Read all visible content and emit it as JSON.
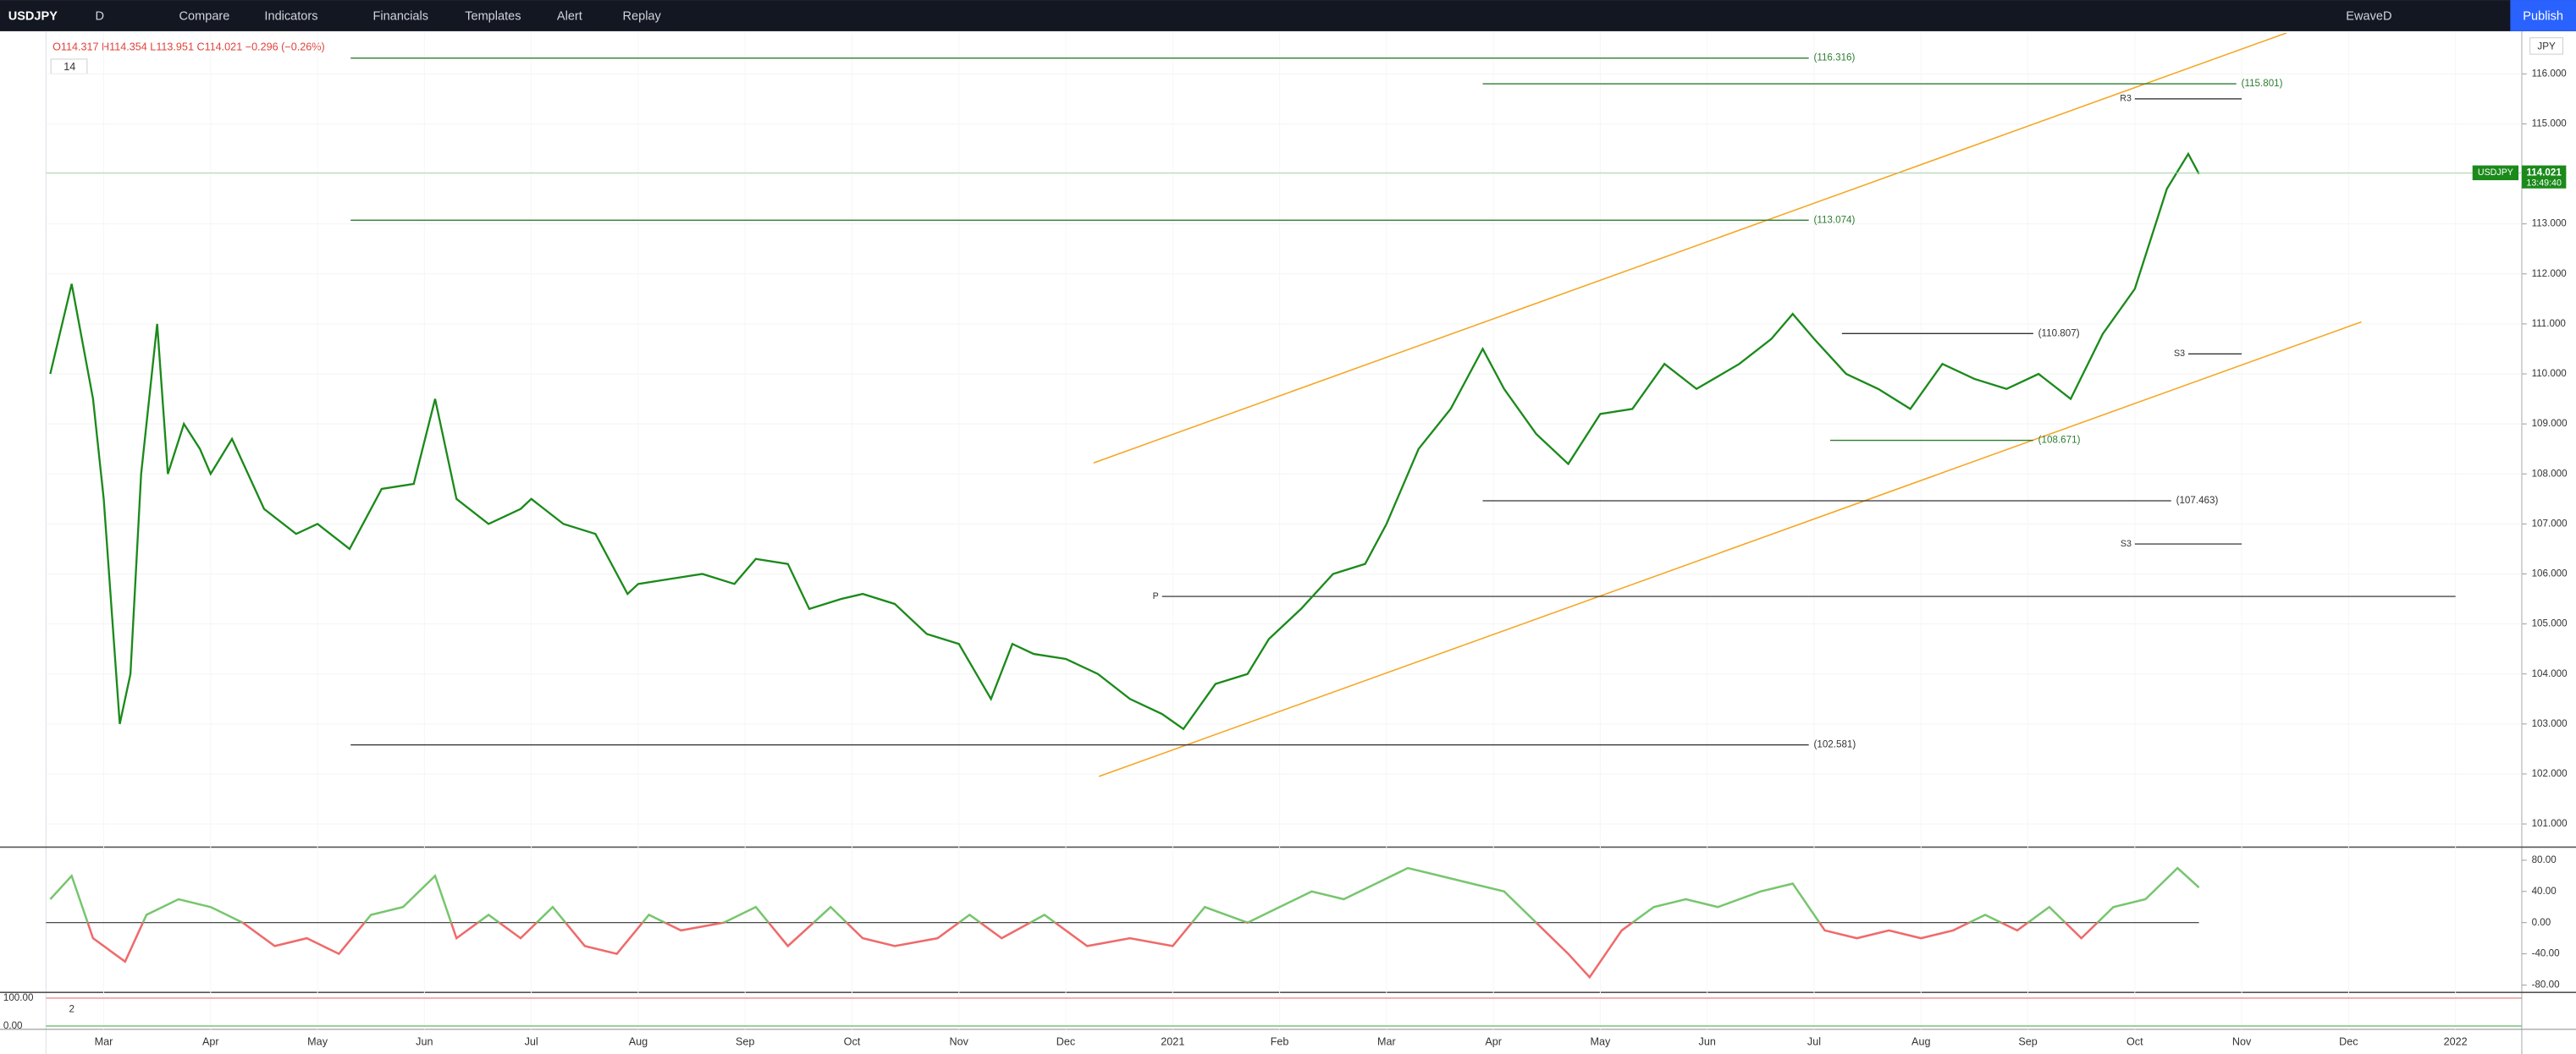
{
  "toolbar": {
    "symbol": "USDJPY",
    "interval": "D",
    "buttons": [
      "Compare",
      "Indicators",
      "Financials",
      "Templates",
      "Alert",
      "Replay"
    ],
    "layout": "EwaveD",
    "publish": "Publish"
  },
  "legend": {
    "ohlc": "O114.317 H114.354 L113.951 C114.021 −0.296 (−0.26%)",
    "indicators": "14",
    "currency": "JPY"
  },
  "price_tag": {
    "symbol": "USDJPY",
    "price": 114.021,
    "countdown": "13:49:40"
  },
  "chart_data": {
    "type": "line",
    "xlim": [
      -0.54,
      22.62
    ],
    "xticks": [
      {
        "value": 0,
        "label": "Mar"
      },
      {
        "value": 1,
        "label": "Apr"
      },
      {
        "value": 2,
        "label": "May"
      },
      {
        "value": 3,
        "label": "Jun"
      },
      {
        "value": 4,
        "label": "Jul"
      },
      {
        "value": 5,
        "label": "Aug"
      },
      {
        "value": 6,
        "label": "Sep"
      },
      {
        "value": 7,
        "label": "Oct"
      },
      {
        "value": 8,
        "label": "Nov"
      },
      {
        "value": 9,
        "label": "Dec"
      },
      {
        "value": 10,
        "label": "2021"
      },
      {
        "value": 11,
        "label": "Feb"
      },
      {
        "value": 12,
        "label": "Mar"
      },
      {
        "value": 13,
        "label": "Apr"
      },
      {
        "value": 14,
        "label": "May"
      },
      {
        "value": 15,
        "label": "Jun"
      },
      {
        "value": 16,
        "label": "Jul"
      },
      {
        "value": 17,
        "label": "Aug"
      },
      {
        "value": 18,
        "label": "Sep"
      },
      {
        "value": 19,
        "label": "Oct"
      },
      {
        "value": 20,
        "label": "Nov"
      },
      {
        "value": 21,
        "label": "Dec"
      },
      {
        "value": 22,
        "label": "2022"
      }
    ],
    "ylim": [
      100.57,
      116.82
    ],
    "yticks": [
      {
        "value": 101,
        "label": "101.000"
      },
      {
        "value": 102,
        "label": "102.000"
      },
      {
        "value": 103,
        "label": "103.000"
      },
      {
        "value": 104,
        "label": "104.000"
      },
      {
        "value": 105,
        "label": "105.000"
      },
      {
        "value": 106,
        "label": "106.000"
      },
      {
        "value": 107,
        "label": "107.000"
      },
      {
        "value": 108,
        "label": "108.000"
      },
      {
        "value": 109,
        "label": "109.000"
      },
      {
        "value": 110,
        "label": "110.000"
      },
      {
        "value": 111,
        "label": "111.000"
      },
      {
        "value": 112,
        "label": "112.000"
      },
      {
        "value": 113,
        "label": "113.000"
      },
      {
        "value": 114,
        "label": "114.000"
      },
      {
        "value": 115,
        "label": "115.000"
      },
      {
        "value": 116,
        "label": "116.000"
      }
    ],
    "series": [
      {
        "color": "#1b8a1b",
        "x": [
          -0.5,
          -0.3,
          -0.1,
          0,
          0.15,
          0.25,
          0.35,
          0.5,
          0.6,
          0.75,
          0.9,
          1.0,
          1.2,
          1.5,
          1.8,
          2.0,
          2.3,
          2.6,
          2.9,
          3.1,
          3.3,
          3.6,
          3.9,
          4.0,
          4.3,
          4.6,
          4.9,
          5.0,
          5.3,
          5.6,
          5.9,
          6.1,
          6.4,
          6.6,
          6.9,
          7.1,
          7.4,
          7.7,
          8.0,
          8.3,
          8.5,
          8.7,
          9.0,
          9.3,
          9.6,
          9.9,
          10.1,
          10.4,
          10.7,
          10.9,
          11.2,
          11.5,
          11.8,
          12.0,
          12.3,
          12.6,
          12.9,
          13.1,
          13.4,
          13.7,
          14.0,
          14.3,
          14.6,
          14.9,
          15.3,
          15.6,
          15.8,
          16.0,
          16.3,
          16.6,
          16.9,
          17.2,
          17.5,
          17.8,
          18.1,
          18.4,
          18.7,
          19.0,
          19.3,
          19.5,
          19.6
        ],
        "values": [
          110.0,
          111.8,
          109.5,
          107.5,
          103.0,
          104.0,
          108.0,
          111.0,
          108.0,
          109.0,
          108.5,
          108.0,
          108.7,
          107.3,
          106.8,
          107.0,
          106.5,
          107.7,
          107.8,
          109.5,
          107.5,
          107.0,
          107.3,
          107.5,
          107.0,
          106.8,
          105.6,
          105.8,
          105.9,
          106.0,
          105.8,
          106.3,
          106.2,
          105.3,
          105.5,
          105.6,
          105.4,
          104.8,
          104.6,
          103.5,
          104.6,
          104.4,
          104.3,
          104.0,
          103.5,
          103.2,
          102.9,
          103.8,
          104.0,
          104.7,
          105.3,
          106.0,
          106.2,
          107.0,
          108.5,
          109.3,
          110.5,
          109.7,
          108.8,
          108.2,
          109.2,
          109.3,
          110.2,
          109.7,
          110.2,
          110.7,
          111.2,
          110.7,
          110.0,
          109.7,
          109.3,
          110.2,
          109.9,
          109.7,
          110.0,
          109.5,
          110.8,
          111.7,
          113.7,
          114.4,
          114.0
        ]
      }
    ],
    "levels": [
      {
        "value": 116.316,
        "label": "(116.316)",
        "x": [
          2.31,
          15.95
        ],
        "color": "#2e7d32"
      },
      {
        "value": 115.801,
        "label": "(115.801)",
        "x": [
          12.9,
          19.95
        ],
        "color": "#2e7d32"
      },
      {
        "value": 113.074,
        "label": "(113.074)",
        "x": [
          2.31,
          15.95
        ],
        "color": "#2e7d32"
      },
      {
        "value": 110.807,
        "label": "(110.807)",
        "x": [
          16.26,
          18.05
        ],
        "color": "#333333"
      },
      {
        "value": 108.671,
        "label": "(108.671)",
        "x": [
          16.15,
          18.05
        ],
        "color": "#2e7d32"
      },
      {
        "value": 107.463,
        "label": "(107.463)",
        "x": [
          12.9,
          19.34
        ],
        "color": "#333333"
      },
      {
        "value": 102.581,
        "label": "(102.581)",
        "x": [
          2.31,
          15.95
        ],
        "color": "#333333"
      }
    ],
    "pivots": [
      {
        "label": "P",
        "value": 105.55,
        "x": [
          9.9,
          22.0
        ]
      },
      {
        "label": "R3",
        "value": 115.5,
        "x": [
          19.0,
          20.0
        ]
      },
      {
        "label": "S3",
        "value": 110.4,
        "x": [
          19.5,
          20.0
        ]
      },
      {
        "label": "S3",
        "value": 106.6,
        "x": [
          19.0,
          20.0
        ]
      }
    ],
    "trendlines": [
      {
        "x": [
          9.26,
          20.42
        ],
        "y": [
          108.22,
          116.82
        ],
        "color": "#f5a623"
      },
      {
        "x": [
          9.31,
          21.12
        ],
        "y": [
          101.95,
          111.04
        ],
        "color": "#f5a623"
      }
    ],
    "oscillator": {
      "ylim": [
        -88.4,
        94.7
      ],
      "yticks": [
        {
          "value": 80,
          "label": "80.00"
        },
        {
          "value": 40,
          "label": "40.00"
        },
        {
          "value": 0,
          "label": "0.00"
        },
        {
          "value": -40,
          "label": "-40.00"
        },
        {
          "value": -80,
          "label": "-80.00"
        }
      ],
      "up_color": "#77c66e",
      "down_color": "#ef6a6a",
      "x": [
        -0.5,
        -0.3,
        -0.1,
        0.2,
        0.4,
        0.7,
        1.0,
        1.3,
        1.6,
        1.9,
        2.2,
        2.5,
        2.8,
        3.1,
        3.3,
        3.6,
        3.9,
        4.2,
        4.5,
        4.8,
        5.1,
        5.4,
        5.8,
        6.1,
        6.4,
        6.8,
        7.1,
        7.4,
        7.8,
        8.1,
        8.4,
        8.8,
        9.2,
        9.6,
        10.0,
        10.3,
        10.7,
        11.0,
        11.3,
        11.6,
        11.9,
        12.2,
        12.5,
        12.8,
        13.1,
        13.4,
        13.7,
        13.9,
        14.2,
        14.5,
        14.8,
        15.1,
        15.5,
        15.8,
        16.1,
        16.4,
        16.7,
        17.0,
        17.3,
        17.6,
        17.9,
        18.2,
        18.5,
        18.8,
        19.1,
        19.4,
        19.6
      ],
      "values": [
        30,
        60,
        -20,
        -50,
        10,
        30,
        20,
        0,
        -30,
        -20,
        -40,
        10,
        20,
        60,
        -20,
        10,
        -20,
        20,
        -30,
        -40,
        10,
        -10,
        0,
        20,
        -30,
        20,
        -20,
        -30,
        -20,
        10,
        -20,
        10,
        -30,
        -20,
        -30,
        20,
        0,
        20,
        40,
        30,
        50,
        70,
        60,
        50,
        40,
        0,
        -40,
        -70,
        -10,
        20,
        30,
        20,
        40,
        50,
        -10,
        -20,
        -10,
        -20,
        -10,
        10,
        -10,
        20,
        -20,
        20,
        30,
        70,
        45
      ]
    },
    "lower_panel": {
      "label": "2",
      "ylim": [
        -11.8,
        123.5
      ],
      "yticks": [
        {
          "value": 100,
          "label": "100.00"
        },
        {
          "value": 0,
          "label": "0.00"
        }
      ]
    }
  }
}
